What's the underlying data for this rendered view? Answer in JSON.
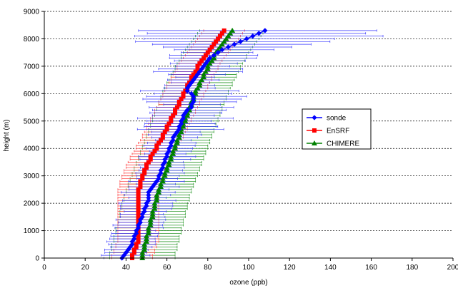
{
  "chart_data": {
    "type": "line",
    "title": "",
    "xlabel": "ozone (ppb)",
    "ylabel": "height (m)",
    "xlim": [
      0,
      200
    ],
    "ylim": [
      0,
      9000
    ],
    "x_ticks": [
      0,
      20,
      40,
      60,
      80,
      100,
      120,
      140,
      160,
      180,
      200
    ],
    "y_ticks": [
      0,
      1000,
      2000,
      3000,
      4000,
      5000,
      6000,
      7000,
      8000,
      9000
    ],
    "grid": "horizontal dashed",
    "legend_position": "right",
    "series": [
      {
        "name": "sonde",
        "color": "#0000ff",
        "marker": "diamond",
        "error": "horizontal spread (thin blue)",
        "points": [
          [
            38,
            0
          ],
          [
            39,
            100
          ],
          [
            40,
            200
          ],
          [
            41,
            300
          ],
          [
            42,
            400
          ],
          [
            43,
            500
          ],
          [
            43,
            600
          ],
          [
            44,
            700
          ],
          [
            44,
            800
          ],
          [
            45,
            900
          ],
          [
            45,
            1000
          ],
          [
            46,
            1100
          ],
          [
            46,
            1200
          ],
          [
            47,
            1300
          ],
          [
            47,
            1400
          ],
          [
            48,
            1500
          ],
          [
            48,
            1600
          ],
          [
            49,
            1700
          ],
          [
            49,
            1800
          ],
          [
            50,
            1900
          ],
          [
            50,
            2000
          ],
          [
            51,
            2100
          ],
          [
            51,
            2200
          ],
          [
            51,
            2300
          ],
          [
            51,
            2400
          ],
          [
            52,
            2500
          ],
          [
            53,
            2600
          ],
          [
            54,
            2700
          ],
          [
            55,
            2800
          ],
          [
            56,
            2900
          ],
          [
            56,
            3000
          ],
          [
            57,
            3100
          ],
          [
            57,
            3200
          ],
          [
            58,
            3300
          ],
          [
            58,
            3400
          ],
          [
            59,
            3500
          ],
          [
            59,
            3600
          ],
          [
            60,
            3700
          ],
          [
            60,
            3800
          ],
          [
            61,
            3900
          ],
          [
            61,
            4000
          ],
          [
            62,
            4100
          ],
          [
            62,
            4200
          ],
          [
            63,
            4300
          ],
          [
            63,
            4400
          ],
          [
            64,
            4500
          ],
          [
            65,
            4600
          ],
          [
            66,
            4700
          ],
          [
            66,
            4800
          ],
          [
            67,
            4900
          ],
          [
            67,
            5000
          ],
          [
            68,
            5100
          ],
          [
            68,
            5200
          ],
          [
            69,
            5300
          ],
          [
            70,
            5400
          ],
          [
            72,
            5500
          ],
          [
            72,
            5600
          ],
          [
            73,
            5700
          ],
          [
            73,
            5800
          ],
          [
            73,
            5900
          ],
          [
            72,
            6000
          ],
          [
            70,
            6100
          ],
          [
            70,
            6200
          ],
          [
            71,
            6300
          ],
          [
            72,
            6400
          ],
          [
            73,
            6500
          ],
          [
            74,
            6600
          ],
          [
            75,
            6700
          ],
          [
            76,
            6800
          ],
          [
            77,
            6900
          ],
          [
            78,
            7000
          ],
          [
            79,
            7100
          ],
          [
            80,
            7200
          ],
          [
            81,
            7300
          ],
          [
            83,
            7400
          ],
          [
            85,
            7500
          ],
          [
            87,
            7600
          ],
          [
            90,
            7700
          ],
          [
            93,
            7800
          ],
          [
            96,
            7900
          ],
          [
            99,
            8000
          ],
          [
            102,
            8100
          ],
          [
            105,
            8200
          ],
          [
            108,
            8300
          ]
        ]
      },
      {
        "name": "EnSRF",
        "color": "#ff0000",
        "marker": "square",
        "error": "±10 ppb band (red hatch)",
        "points": [
          [
            43,
            0
          ],
          [
            43,
            100
          ],
          [
            44,
            200
          ],
          [
            44,
            300
          ],
          [
            45,
            400
          ],
          [
            45,
            500
          ],
          [
            46,
            600
          ],
          [
            46,
            700
          ],
          [
            46,
            800
          ],
          [
            46,
            900
          ],
          [
            46,
            1000
          ],
          [
            46,
            1100
          ],
          [
            46,
            1200
          ],
          [
            46,
            1300
          ],
          [
            46,
            1400
          ],
          [
            46,
            1500
          ],
          [
            46,
            1600
          ],
          [
            46,
            1700
          ],
          [
            46,
            1800
          ],
          [
            46,
            1900
          ],
          [
            46,
            2000
          ],
          [
            46,
            2100
          ],
          [
            46,
            2200
          ],
          [
            46,
            2300
          ],
          [
            46,
            2400
          ],
          [
            46,
            2500
          ],
          [
            47,
            2600
          ],
          [
            47,
            2700
          ],
          [
            47,
            2800
          ],
          [
            48,
            2900
          ],
          [
            48,
            3000
          ],
          [
            49,
            3100
          ],
          [
            49,
            3200
          ],
          [
            50,
            3300
          ],
          [
            50,
            3400
          ],
          [
            51,
            3500
          ],
          [
            52,
            3600
          ],
          [
            52,
            3700
          ],
          [
            53,
            3800
          ],
          [
            54,
            3900
          ],
          [
            55,
            4000
          ],
          [
            55,
            4100
          ],
          [
            56,
            4200
          ],
          [
            57,
            4300
          ],
          [
            58,
            4400
          ],
          [
            58,
            4500
          ],
          [
            59,
            4600
          ],
          [
            60,
            4700
          ],
          [
            60,
            4800
          ],
          [
            61,
            4900
          ],
          [
            62,
            5000
          ],
          [
            62,
            5100
          ],
          [
            63,
            5200
          ],
          [
            64,
            5300
          ],
          [
            64,
            5400
          ],
          [
            65,
            5500
          ],
          [
            66,
            5600
          ],
          [
            66,
            5700
          ],
          [
            67,
            5800
          ],
          [
            68,
            5900
          ],
          [
            68,
            6000
          ],
          [
            69,
            6100
          ],
          [
            70,
            6200
          ],
          [
            70,
            6300
          ],
          [
            71,
            6400
          ],
          [
            72,
            6500
          ],
          [
            72,
            6600
          ],
          [
            73,
            6700
          ],
          [
            74,
            6800
          ],
          [
            75,
            6900
          ],
          [
            75,
            7000
          ],
          [
            76,
            7100
          ],
          [
            77,
            7200
          ],
          [
            78,
            7300
          ],
          [
            79,
            7400
          ],
          [
            80,
            7500
          ],
          [
            81,
            7600
          ],
          [
            82,
            7700
          ],
          [
            83,
            7800
          ],
          [
            84,
            7900
          ],
          [
            85,
            8000
          ],
          [
            86,
            8100
          ],
          [
            87,
            8200
          ],
          [
            88,
            8300
          ]
        ]
      },
      {
        "name": "CHIMERE",
        "color": "#008000",
        "marker": "triangle",
        "error": "±16 ppb band (green hatch)",
        "points": [
          [
            48,
            0
          ],
          [
            48,
            100
          ],
          [
            48,
            200
          ],
          [
            49,
            300
          ],
          [
            49,
            400
          ],
          [
            49,
            500
          ],
          [
            50,
            600
          ],
          [
            50,
            700
          ],
          [
            50,
            800
          ],
          [
            51,
            900
          ],
          [
            51,
            1000
          ],
          [
            51,
            1100
          ],
          [
            52,
            1200
          ],
          [
            52,
            1300
          ],
          [
            52,
            1400
          ],
          [
            53,
            1500
          ],
          [
            53,
            1600
          ],
          [
            53,
            1700
          ],
          [
            54,
            1800
          ],
          [
            54,
            1900
          ],
          [
            54,
            2000
          ],
          [
            55,
            2100
          ],
          [
            55,
            2200
          ],
          [
            55,
            2300
          ],
          [
            56,
            2400
          ],
          [
            56,
            2500
          ],
          [
            57,
            2600
          ],
          [
            57,
            2700
          ],
          [
            58,
            2800
          ],
          [
            58,
            2900
          ],
          [
            59,
            3000
          ],
          [
            59,
            3100
          ],
          [
            60,
            3200
          ],
          [
            60,
            3300
          ],
          [
            61,
            3400
          ],
          [
            61,
            3500
          ],
          [
            62,
            3600
          ],
          [
            62,
            3700
          ],
          [
            63,
            3800
          ],
          [
            63,
            3900
          ],
          [
            64,
            4000
          ],
          [
            64,
            4100
          ],
          [
            65,
            4200
          ],
          [
            65,
            4300
          ],
          [
            66,
            4400
          ],
          [
            66,
            4500
          ],
          [
            67,
            4600
          ],
          [
            67,
            4700
          ],
          [
            68,
            4800
          ],
          [
            68,
            4900
          ],
          [
            69,
            5000
          ],
          [
            69,
            5100
          ],
          [
            70,
            5200
          ],
          [
            70,
            5300
          ],
          [
            71,
            5400
          ],
          [
            71,
            5500
          ],
          [
            72,
            5600
          ],
          [
            72,
            5700
          ],
          [
            73,
            5800
          ],
          [
            73,
            5900
          ],
          [
            74,
            6000
          ],
          [
            74,
            6100
          ],
          [
            75,
            6200
          ],
          [
            76,
            6300
          ],
          [
            76,
            6400
          ],
          [
            77,
            6500
          ],
          [
            78,
            6600
          ],
          [
            78,
            6700
          ],
          [
            79,
            6800
          ],
          [
            80,
            6900
          ],
          [
            80,
            7000
          ],
          [
            81,
            7100
          ],
          [
            82,
            7200
          ],
          [
            83,
            7300
          ],
          [
            83,
            7400
          ],
          [
            84,
            7500
          ],
          [
            85,
            7600
          ],
          [
            86,
            7700
          ],
          [
            87,
            7800
          ],
          [
            88,
            7900
          ],
          [
            89,
            8000
          ],
          [
            90,
            8100
          ],
          [
            91,
            8200
          ],
          [
            92,
            8300
          ]
        ]
      }
    ]
  }
}
